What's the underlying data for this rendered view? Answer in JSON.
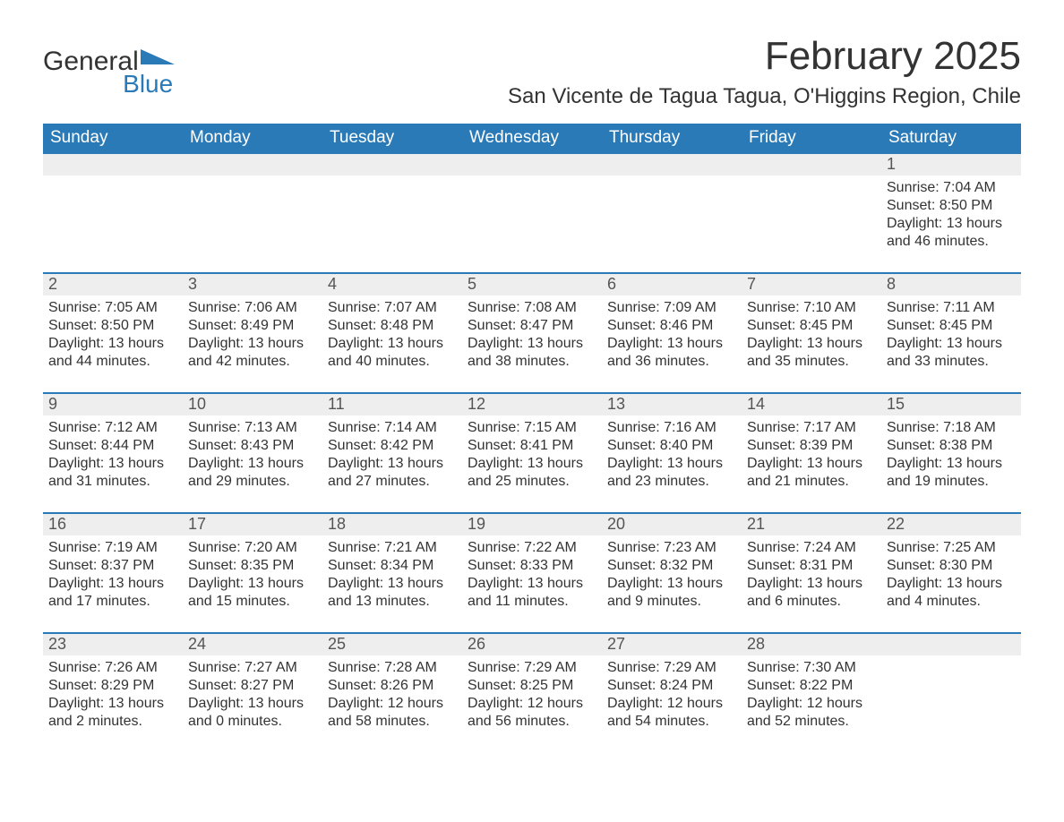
{
  "brand": {
    "word1": "General",
    "word2": "Blue",
    "accent_color": "#2a7ab8"
  },
  "title": "February 2025",
  "location": "San Vicente de Tagua Tagua, O'Higgins Region, Chile",
  "weekday_headers": [
    "Sunday",
    "Monday",
    "Tuesday",
    "Wednesday",
    "Thursday",
    "Friday",
    "Saturday"
  ],
  "colors": {
    "header_bg": "#2a7ab8",
    "header_text": "#ffffff",
    "daynum_bg": "#eeeeee",
    "daynum_border": "#2a7ab8",
    "text": "#333333"
  },
  "first_weekday_index": 6,
  "days": [
    {
      "n": 1,
      "sunrise": "7:04 AM",
      "sunset": "8:50 PM",
      "daylight": "13 hours and 46 minutes."
    },
    {
      "n": 2,
      "sunrise": "7:05 AM",
      "sunset": "8:50 PM",
      "daylight": "13 hours and 44 minutes."
    },
    {
      "n": 3,
      "sunrise": "7:06 AM",
      "sunset": "8:49 PM",
      "daylight": "13 hours and 42 minutes."
    },
    {
      "n": 4,
      "sunrise": "7:07 AM",
      "sunset": "8:48 PM",
      "daylight": "13 hours and 40 minutes."
    },
    {
      "n": 5,
      "sunrise": "7:08 AM",
      "sunset": "8:47 PM",
      "daylight": "13 hours and 38 minutes."
    },
    {
      "n": 6,
      "sunrise": "7:09 AM",
      "sunset": "8:46 PM",
      "daylight": "13 hours and 36 minutes."
    },
    {
      "n": 7,
      "sunrise": "7:10 AM",
      "sunset": "8:45 PM",
      "daylight": "13 hours and 35 minutes."
    },
    {
      "n": 8,
      "sunrise": "7:11 AM",
      "sunset": "8:45 PM",
      "daylight": "13 hours and 33 minutes."
    },
    {
      "n": 9,
      "sunrise": "7:12 AM",
      "sunset": "8:44 PM",
      "daylight": "13 hours and 31 minutes."
    },
    {
      "n": 10,
      "sunrise": "7:13 AM",
      "sunset": "8:43 PM",
      "daylight": "13 hours and 29 minutes."
    },
    {
      "n": 11,
      "sunrise": "7:14 AM",
      "sunset": "8:42 PM",
      "daylight": "13 hours and 27 minutes."
    },
    {
      "n": 12,
      "sunrise": "7:15 AM",
      "sunset": "8:41 PM",
      "daylight": "13 hours and 25 minutes."
    },
    {
      "n": 13,
      "sunrise": "7:16 AM",
      "sunset": "8:40 PM",
      "daylight": "13 hours and 23 minutes."
    },
    {
      "n": 14,
      "sunrise": "7:17 AM",
      "sunset": "8:39 PM",
      "daylight": "13 hours and 21 minutes."
    },
    {
      "n": 15,
      "sunrise": "7:18 AM",
      "sunset": "8:38 PM",
      "daylight": "13 hours and 19 minutes."
    },
    {
      "n": 16,
      "sunrise": "7:19 AM",
      "sunset": "8:37 PM",
      "daylight": "13 hours and 17 minutes."
    },
    {
      "n": 17,
      "sunrise": "7:20 AM",
      "sunset": "8:35 PM",
      "daylight": "13 hours and 15 minutes."
    },
    {
      "n": 18,
      "sunrise": "7:21 AM",
      "sunset": "8:34 PM",
      "daylight": "13 hours and 13 minutes."
    },
    {
      "n": 19,
      "sunrise": "7:22 AM",
      "sunset": "8:33 PM",
      "daylight": "13 hours and 11 minutes."
    },
    {
      "n": 20,
      "sunrise": "7:23 AM",
      "sunset": "8:32 PM",
      "daylight": "13 hours and 9 minutes."
    },
    {
      "n": 21,
      "sunrise": "7:24 AM",
      "sunset": "8:31 PM",
      "daylight": "13 hours and 6 minutes."
    },
    {
      "n": 22,
      "sunrise": "7:25 AM",
      "sunset": "8:30 PM",
      "daylight": "13 hours and 4 minutes."
    },
    {
      "n": 23,
      "sunrise": "7:26 AM",
      "sunset": "8:29 PM",
      "daylight": "13 hours and 2 minutes."
    },
    {
      "n": 24,
      "sunrise": "7:27 AM",
      "sunset": "8:27 PM",
      "daylight": "13 hours and 0 minutes."
    },
    {
      "n": 25,
      "sunrise": "7:28 AM",
      "sunset": "8:26 PM",
      "daylight": "12 hours and 58 minutes."
    },
    {
      "n": 26,
      "sunrise": "7:29 AM",
      "sunset": "8:25 PM",
      "daylight": "12 hours and 56 minutes."
    },
    {
      "n": 27,
      "sunrise": "7:29 AM",
      "sunset": "8:24 PM",
      "daylight": "12 hours and 54 minutes."
    },
    {
      "n": 28,
      "sunrise": "7:30 AM",
      "sunset": "8:22 PM",
      "daylight": "12 hours and 52 minutes."
    }
  ],
  "labels": {
    "sunrise": "Sunrise: ",
    "sunset": "Sunset: ",
    "daylight": "Daylight: "
  }
}
